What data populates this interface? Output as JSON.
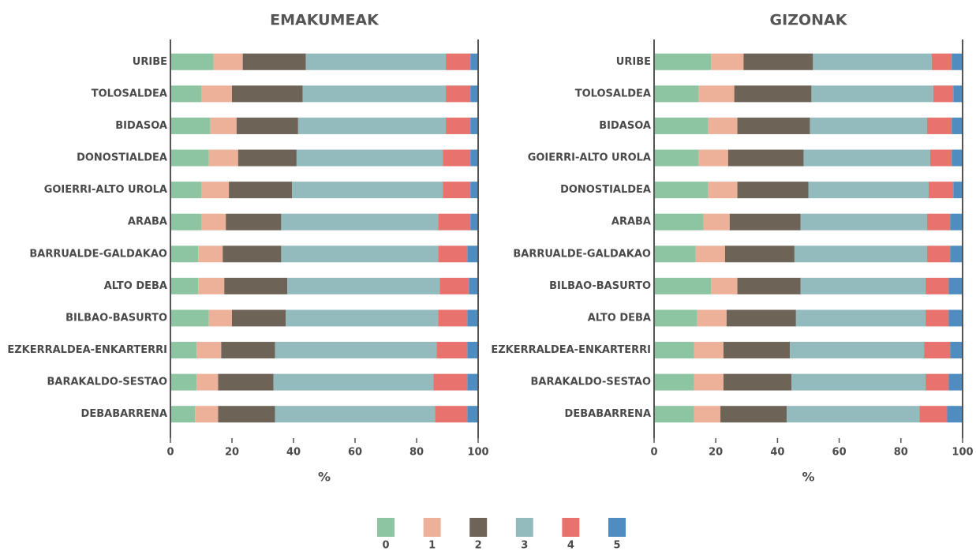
{
  "chart_data": [
    {
      "type": "stacked-bar",
      "orientation": "horizontal",
      "title": "EMAKUMEAK",
      "xlabel": "%",
      "categories": [
        "URIBE",
        "TOLOSALDEA",
        "BIDASOA",
        "DONOSTIALDEA",
        "GOIERRI-ALTO UROLA",
        "ARABA",
        "BARRUALDE-GALDAKAO",
        "ALTO DEBA",
        "BILBAO-BASURTO",
        "EZKERRALDEA-ENKARTERRI",
        "BARAKALDO-SESTAO",
        "DEBABARRENA"
      ],
      "xlim": [
        0,
        100
      ],
      "xticks": [
        0,
        20,
        40,
        60,
        80,
        100
      ],
      "series": [
        {
          "name": "0",
          "color": "#8dc4a2",
          "values": [
            14,
            10,
            13,
            12.5,
            10,
            10,
            9,
            9,
            12.5,
            8.5,
            8.5,
            8
          ]
        },
        {
          "name": "1",
          "color": "#edb19a",
          "values": [
            9.5,
            10,
            8.5,
            9.5,
            9,
            8,
            8,
            8.5,
            7.5,
            8,
            7,
            7.5
          ]
        },
        {
          "name": "2",
          "color": "#6e6357",
          "values": [
            20.5,
            23,
            20,
            19,
            20.5,
            18,
            19,
            20.5,
            17.5,
            17.5,
            18,
            18.5
          ]
        },
        {
          "name": "3",
          "color": "#93babd",
          "values": [
            45.5,
            46.5,
            48,
            47.5,
            49,
            51,
            51,
            49.5,
            49.5,
            52.5,
            52,
            52
          ]
        },
        {
          "name": "4",
          "color": "#e8736e",
          "values": [
            8,
            8,
            8,
            9,
            9,
            10.5,
            9.5,
            9.5,
            9.5,
            10,
            11,
            10.5
          ]
        },
        {
          "name": "5",
          "color": "#4f8cc0",
          "values": [
            2.5,
            2.5,
            2.5,
            2.5,
            2.5,
            2.5,
            3.5,
            3,
            3.5,
            3.5,
            3.5,
            3.5
          ]
        }
      ]
    },
    {
      "type": "stacked-bar",
      "orientation": "horizontal",
      "title": "GIZONAK",
      "xlabel": "%",
      "categories": [
        "URIBE",
        "TOLOSALDEA",
        "BIDASOA",
        "GOIERRI-ALTO UROLA",
        "DONOSTIALDEA",
        "ARABA",
        "BARRUALDE-GALDAKAO",
        "BILBAO-BASURTO",
        "ALTO DEBA",
        "EZKERRALDEA-ENKARTERRI",
        "BARAKALDO-SESTAO",
        "DEBABARRENA"
      ],
      "xlim": [
        0,
        100
      ],
      "xticks": [
        0,
        20,
        40,
        60,
        80,
        100
      ],
      "series": [
        {
          "name": "0",
          "color": "#8dc4a2",
          "values": [
            18.5,
            14.5,
            17.5,
            14.5,
            17.5,
            16,
            13.5,
            18.5,
            14,
            13,
            13,
            13
          ]
        },
        {
          "name": "1",
          "color": "#edb19a",
          "values": [
            10.5,
            11.5,
            9.5,
            9.5,
            9.5,
            8.5,
            9.5,
            8.5,
            9.5,
            9.5,
            9.5,
            8.5
          ]
        },
        {
          "name": "2",
          "color": "#6e6357",
          "values": [
            22.5,
            25,
            23.5,
            24.5,
            23,
            23,
            22.5,
            20.5,
            22.5,
            21.5,
            22,
            21.5
          ]
        },
        {
          "name": "3",
          "color": "#93babd",
          "values": [
            38.5,
            39.5,
            38,
            41,
            39,
            41,
            43,
            40.5,
            42,
            43.5,
            43.5,
            43
          ]
        },
        {
          "name": "4",
          "color": "#e8736e",
          "values": [
            6.5,
            6.5,
            8,
            7,
            8,
            7.5,
            7.5,
            7.5,
            7.5,
            8.5,
            7.5,
            9
          ]
        },
        {
          "name": "5",
          "color": "#4f8cc0",
          "values": [
            3.5,
            3,
            3.5,
            3.5,
            3,
            4,
            4,
            4.5,
            4.5,
            4,
            4.5,
            5
          ]
        }
      ]
    }
  ]
}
